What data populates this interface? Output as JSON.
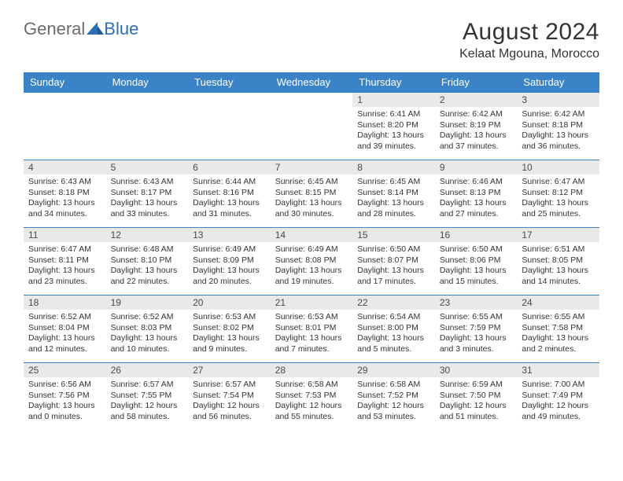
{
  "logo": {
    "general": "General",
    "blue": "Blue"
  },
  "title": "August 2024",
  "location": "Kelaat Mgouna, Morocco",
  "colors": {
    "header_bg": "#3b83c7",
    "header_text": "#ffffff",
    "daynum_bg": "#e9e9e9",
    "border": "#3b83c7",
    "logo_blue": "#2b6fb5",
    "logo_gray": "#6b6b6b"
  },
  "weekdays": [
    "Sunday",
    "Monday",
    "Tuesday",
    "Wednesday",
    "Thursday",
    "Friday",
    "Saturday"
  ],
  "weeks": [
    [
      null,
      null,
      null,
      null,
      {
        "n": "1",
        "sr": "6:41 AM",
        "ss": "8:20 PM",
        "dl": "13 hours and 39 minutes."
      },
      {
        "n": "2",
        "sr": "6:42 AM",
        "ss": "8:19 PM",
        "dl": "13 hours and 37 minutes."
      },
      {
        "n": "3",
        "sr": "6:42 AM",
        "ss": "8:18 PM",
        "dl": "13 hours and 36 minutes."
      }
    ],
    [
      {
        "n": "4",
        "sr": "6:43 AM",
        "ss": "8:18 PM",
        "dl": "13 hours and 34 minutes."
      },
      {
        "n": "5",
        "sr": "6:43 AM",
        "ss": "8:17 PM",
        "dl": "13 hours and 33 minutes."
      },
      {
        "n": "6",
        "sr": "6:44 AM",
        "ss": "8:16 PM",
        "dl": "13 hours and 31 minutes."
      },
      {
        "n": "7",
        "sr": "6:45 AM",
        "ss": "8:15 PM",
        "dl": "13 hours and 30 minutes."
      },
      {
        "n": "8",
        "sr": "6:45 AM",
        "ss": "8:14 PM",
        "dl": "13 hours and 28 minutes."
      },
      {
        "n": "9",
        "sr": "6:46 AM",
        "ss": "8:13 PM",
        "dl": "13 hours and 27 minutes."
      },
      {
        "n": "10",
        "sr": "6:47 AM",
        "ss": "8:12 PM",
        "dl": "13 hours and 25 minutes."
      }
    ],
    [
      {
        "n": "11",
        "sr": "6:47 AM",
        "ss": "8:11 PM",
        "dl": "13 hours and 23 minutes."
      },
      {
        "n": "12",
        "sr": "6:48 AM",
        "ss": "8:10 PM",
        "dl": "13 hours and 22 minutes."
      },
      {
        "n": "13",
        "sr": "6:49 AM",
        "ss": "8:09 PM",
        "dl": "13 hours and 20 minutes."
      },
      {
        "n": "14",
        "sr": "6:49 AM",
        "ss": "8:08 PM",
        "dl": "13 hours and 19 minutes."
      },
      {
        "n": "15",
        "sr": "6:50 AM",
        "ss": "8:07 PM",
        "dl": "13 hours and 17 minutes."
      },
      {
        "n": "16",
        "sr": "6:50 AM",
        "ss": "8:06 PM",
        "dl": "13 hours and 15 minutes."
      },
      {
        "n": "17",
        "sr": "6:51 AM",
        "ss": "8:05 PM",
        "dl": "13 hours and 14 minutes."
      }
    ],
    [
      {
        "n": "18",
        "sr": "6:52 AM",
        "ss": "8:04 PM",
        "dl": "13 hours and 12 minutes."
      },
      {
        "n": "19",
        "sr": "6:52 AM",
        "ss": "8:03 PM",
        "dl": "13 hours and 10 minutes."
      },
      {
        "n": "20",
        "sr": "6:53 AM",
        "ss": "8:02 PM",
        "dl": "13 hours and 9 minutes."
      },
      {
        "n": "21",
        "sr": "6:53 AM",
        "ss": "8:01 PM",
        "dl": "13 hours and 7 minutes."
      },
      {
        "n": "22",
        "sr": "6:54 AM",
        "ss": "8:00 PM",
        "dl": "13 hours and 5 minutes."
      },
      {
        "n": "23",
        "sr": "6:55 AM",
        "ss": "7:59 PM",
        "dl": "13 hours and 3 minutes."
      },
      {
        "n": "24",
        "sr": "6:55 AM",
        "ss": "7:58 PM",
        "dl": "13 hours and 2 minutes."
      }
    ],
    [
      {
        "n": "25",
        "sr": "6:56 AM",
        "ss": "7:56 PM",
        "dl": "13 hours and 0 minutes."
      },
      {
        "n": "26",
        "sr": "6:57 AM",
        "ss": "7:55 PM",
        "dl": "12 hours and 58 minutes."
      },
      {
        "n": "27",
        "sr": "6:57 AM",
        "ss": "7:54 PM",
        "dl": "12 hours and 56 minutes."
      },
      {
        "n": "28",
        "sr": "6:58 AM",
        "ss": "7:53 PM",
        "dl": "12 hours and 55 minutes."
      },
      {
        "n": "29",
        "sr": "6:58 AM",
        "ss": "7:52 PM",
        "dl": "12 hours and 53 minutes."
      },
      {
        "n": "30",
        "sr": "6:59 AM",
        "ss": "7:50 PM",
        "dl": "12 hours and 51 minutes."
      },
      {
        "n": "31",
        "sr": "7:00 AM",
        "ss": "7:49 PM",
        "dl": "12 hours and 49 minutes."
      }
    ]
  ],
  "labels": {
    "sunrise": "Sunrise:",
    "sunset": "Sunset:",
    "daylight": "Daylight:"
  }
}
